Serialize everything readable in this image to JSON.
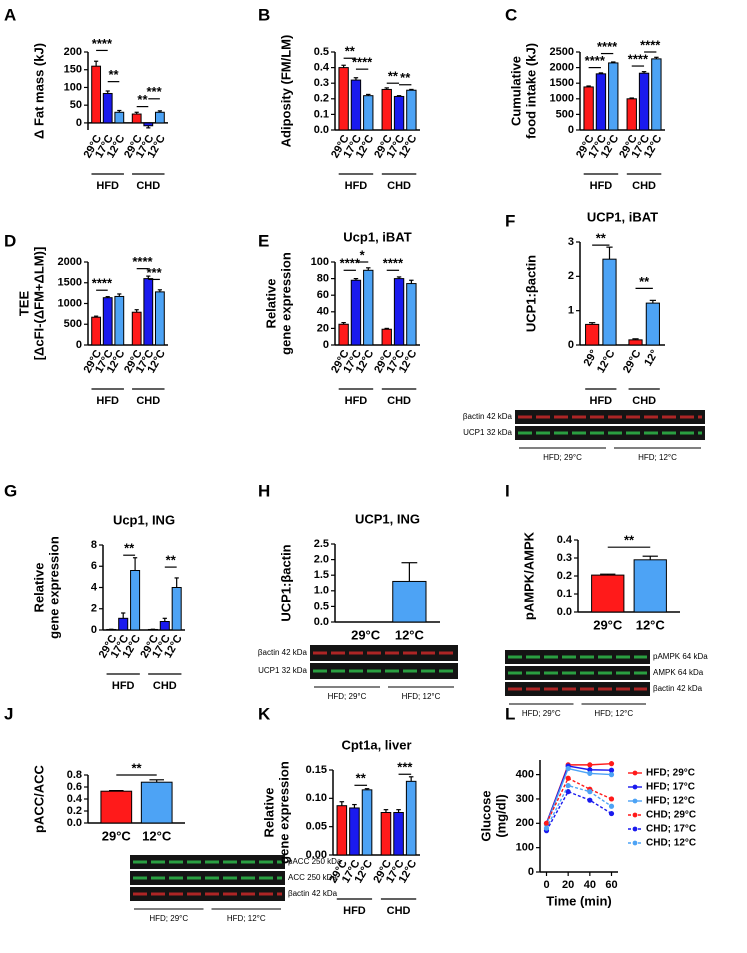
{
  "chart_data": [
    {
      "panel": "A",
      "type": "bar",
      "ylabel": [
        "Δ Fat mass (kJ)"
      ],
      "ylim": [
        -20,
        200
      ],
      "yticks": [
        0,
        50,
        100,
        150,
        200
      ],
      "colors": [
        "#ff1a1a",
        "#1a1aee",
        "#4da3f5"
      ],
      "rotate_labels": true,
      "groups": [
        {
          "name": "HFD",
          "categories": [
            "29°C",
            "17°C",
            "12°C"
          ],
          "values": [
            160,
            83,
            30
          ],
          "errors": [
            14,
            7,
            5
          ]
        },
        {
          "name": "CHD",
          "categories": [
            "29°C",
            "17°C",
            "12°C"
          ],
          "values": [
            25,
            -8,
            30
          ],
          "errors": [
            5,
            6,
            4
          ]
        }
      ],
      "significance": [
        "****",
        "**",
        "**",
        "***"
      ]
    },
    {
      "panel": "B",
      "type": "bar",
      "ylabel": [
        "Adiposity  (FM/LM)"
      ],
      "ylim": [
        0,
        0.5
      ],
      "yticks": [
        {
          "value": 0,
          "label": "0.0"
        },
        0.1,
        0.2,
        0.3,
        0.4,
        0.5
      ],
      "colors": [
        "#ff1a1a",
        "#1a1aee",
        "#4da3f5"
      ],
      "rotate_labels": true,
      "groups": [
        {
          "name": "HFD",
          "categories": [
            "29°C",
            "17°C",
            "12°C"
          ],
          "values": [
            0.4,
            0.32,
            0.22
          ],
          "errors": [
            0.015,
            0.015,
            0.008
          ]
        },
        {
          "name": "CHD",
          "categories": [
            "29°C",
            "17°C",
            "12°C"
          ],
          "values": [
            0.26,
            0.215,
            0.255
          ],
          "errors": [
            0.01,
            0.005,
            0.005
          ]
        }
      ],
      "significance": [
        "**",
        "****",
        "**",
        "**"
      ]
    },
    {
      "panel": "C",
      "type": "bar",
      "ylabel": [
        "Cumulative",
        "food intake (kJ)"
      ],
      "ylim": [
        0,
        2500
      ],
      "yticks": [
        0,
        500,
        1000,
        1500,
        2000,
        2500
      ],
      "colors": [
        "#ff1a1a",
        "#1a1aee",
        "#4da3f5"
      ],
      "rotate_labels": true,
      "groups": [
        {
          "name": "HFD",
          "categories": [
            "29°C",
            "17°C",
            "12°C"
          ],
          "values": [
            1380,
            1800,
            2150
          ],
          "errors": [
            30,
            30,
            30
          ]
        },
        {
          "name": "CHD",
          "categories": [
            "29°C",
            "17°C",
            "12°C"
          ],
          "values": [
            1000,
            1820,
            2280
          ],
          "errors": [
            25,
            50,
            50
          ]
        }
      ],
      "significance": [
        "****",
        "****",
        "****",
        "****"
      ]
    },
    {
      "panel": "D",
      "type": "bar",
      "ylabel": [
        "TEE",
        "[ΔcFI-(ΔFM+ΔLM)]"
      ],
      "ylim": [
        0,
        2000
      ],
      "yticks": [
        0,
        500,
        1000,
        1500,
        2000
      ],
      "colors": [
        "#ff1a1a",
        "#1a1aee",
        "#4da3f5"
      ],
      "rotate_labels": true,
      "groups": [
        {
          "name": "HFD",
          "categories": [
            "29°C",
            "17°C",
            "12°C"
          ],
          "values": [
            670,
            1140,
            1170
          ],
          "errors": [
            25,
            25,
            60
          ]
        },
        {
          "name": "CHD",
          "categories": [
            "29°C",
            "17°C",
            "12°C"
          ],
          "values": [
            790,
            1600,
            1280
          ],
          "errors": [
            60,
            60,
            50
          ]
        }
      ],
      "significance": [
        "****",
        "****",
        "***"
      ]
    },
    {
      "panel": "E",
      "type": "bar",
      "title": "Ucp1, iBAT",
      "ylabel": [
        "Relative",
        "gene expression"
      ],
      "ylim": [
        0,
        100
      ],
      "yticks": [
        0,
        20,
        40,
        60,
        80,
        100
      ],
      "colors": [
        "#ff1a1a",
        "#1a1aee",
        "#4da3f5"
      ],
      "rotate_labels": true,
      "groups": [
        {
          "name": "HFD",
          "categories": [
            "29°C",
            "17°C",
            "12°C"
          ],
          "values": [
            25,
            78,
            90
          ],
          "errors": [
            2,
            2,
            3
          ]
        },
        {
          "name": "CHD",
          "categories": [
            "29°C",
            "17°C",
            "12°C"
          ],
          "values": [
            19,
            80,
            74
          ],
          "errors": [
            1,
            2,
            4
          ]
        }
      ],
      "significance": [
        "****",
        "*",
        "****"
      ]
    },
    {
      "panel": "F",
      "type": "bar",
      "title": "UCP1, iBAT",
      "ylabel": [
        "UCP1:βactin"
      ],
      "ylim": [
        0,
        3
      ],
      "yticks": [
        0,
        1,
        2,
        3
      ],
      "colors": [
        "#ff1a1a",
        "#4da3f5"
      ],
      "rotate_labels": true,
      "groups": [
        {
          "name": "HFD",
          "categories": [
            "29°",
            "12°C"
          ],
          "values": [
            0.6,
            2.5
          ],
          "errors": [
            0.05,
            0.35
          ]
        },
        {
          "name": "CHD",
          "categories": [
            "29°C",
            "12°"
          ],
          "values": [
            0.15,
            1.22
          ],
          "errors": [
            0.03,
            0.08
          ]
        }
      ],
      "significance": [
        "**",
        "**"
      ],
      "blot": {
        "label_side": "left",
        "rows": [
          {
            "label": "βactin 42 kDa",
            "color": "#c82828"
          },
          {
            "label": "UCP1 32 kDa",
            "color": "#2fb84a"
          }
        ],
        "groups": [
          "HFD; 29°C",
          "HFD; 12°C"
        ]
      }
    },
    {
      "panel": "G",
      "type": "bar",
      "title": "Ucp1, ING",
      "ylabel": [
        "Relative",
        "gene expression"
      ],
      "ylim": [
        0,
        8
      ],
      "yticks": [
        0,
        2,
        4,
        6,
        8
      ],
      "colors": [
        "#ff1a1a",
        "#1a1aee",
        "#4da3f5"
      ],
      "rotate_labels": true,
      "groups": [
        {
          "name": "HFD",
          "categories": [
            "29°C",
            "17°C",
            "12°C"
          ],
          "values": [
            0.05,
            1.1,
            5.6
          ],
          "errors": [
            0.02,
            0.5,
            1.2
          ]
        },
        {
          "name": "CHD",
          "categories": [
            "29°C",
            "17°C",
            "12°C"
          ],
          "values": [
            0.05,
            0.8,
            4.0
          ],
          "errors": [
            0.02,
            0.3,
            0.9
          ]
        }
      ],
      "significance": [
        "**",
        "**"
      ]
    },
    {
      "panel": "H",
      "type": "bar",
      "title": "UCP1, ING",
      "ylabel": [
        "UCP1:βactin"
      ],
      "ylim": [
        0,
        2.5
      ],
      "yticks": [
        {
          "value": 0,
          "label": "0.0"
        },
        0.5,
        {
          "value": 1,
          "label": "1.0"
        },
        1.5,
        {
          "value": 2,
          "label": "2.0"
        },
        2.5
      ],
      "colors": [
        "#ff1a1a",
        "#4da3f5"
      ],
      "rotate_labels": false,
      "groups": [
        {
          "categories": [
            "29°C",
            "12°C"
          ],
          "values": [
            0,
            1.3
          ],
          "errors": [
            null,
            0.6
          ]
        }
      ],
      "significance": [],
      "blot": {
        "label_side": "left",
        "rows": [
          {
            "label": "βactin 42 kDa",
            "color": "#c82828"
          },
          {
            "label": "UCP1 32 kDa",
            "color": "#2fb84a"
          }
        ],
        "groups": [
          "HFD; 29°C",
          "HFD; 12°C"
        ]
      }
    },
    {
      "panel": "I",
      "type": "bar",
      "ylabel": [
        "pAMPK/AMPK"
      ],
      "ylim": [
        0,
        0.4
      ],
      "yticks": [
        {
          "value": 0,
          "label": "0.0"
        },
        0.1,
        0.2,
        0.3,
        0.4
      ],
      "colors": [
        "#ff1a1a",
        "#4da3f5"
      ],
      "rotate_labels": false,
      "groups": [
        {
          "categories": [
            "29°C",
            "12°C"
          ],
          "values": [
            0.205,
            0.29
          ],
          "errors": [
            0.005,
            0.02
          ]
        }
      ],
      "significance": [
        "**"
      ],
      "blot": {
        "label_side": "right",
        "rows": [
          {
            "label": "pAMPK 64 kDa",
            "color": "#2fb84a"
          },
          {
            "label": "AMPK 64 kDa",
            "color": "#2fb84a"
          },
          {
            "label": "βactin 42 kDa",
            "color": "#c82828"
          }
        ],
        "groups": [
          "HFD; 29°C",
          "HFD; 12°C"
        ]
      }
    },
    {
      "panel": "J",
      "type": "bar",
      "ylabel": [
        "pACC/ACC"
      ],
      "ylim": [
        0,
        0.8
      ],
      "yticks": [
        {
          "value": 0,
          "label": "0.0"
        },
        0.2,
        0.4,
        0.6,
        0.8
      ],
      "colors": [
        "#ff1a1a",
        "#4da3f5"
      ],
      "rotate_labels": false,
      "groups": [
        {
          "categories": [
            "29°C",
            "12°C"
          ],
          "values": [
            0.53,
            0.68
          ],
          "errors": [
            0.01,
            0.04
          ]
        }
      ],
      "significance": [
        "**"
      ],
      "blot": {
        "label_side": "right",
        "rows": [
          {
            "label": "pACC 250 kDa",
            "color": "#2fb84a"
          },
          {
            "label": "ACC 250 kDa",
            "color": "#2fb84a"
          },
          {
            "label": "βactin 42 kDa",
            "color": "#c82828"
          }
        ],
        "groups": [
          "HFD; 29°C",
          "HFD; 12°C"
        ]
      }
    },
    {
      "panel": "K",
      "type": "bar",
      "title": "Cpt1a, liver",
      "ylabel": [
        "Relative",
        "gene expression"
      ],
      "ylim": [
        0,
        0.15
      ],
      "yticks": [
        {
          "value": 0,
          "label": "0.00"
        },
        0.05,
        {
          "value": 0.1,
          "label": "0.10"
        },
        0.15
      ],
      "colors": [
        "#ff1a1a",
        "#1a1aee",
        "#4da3f5"
      ],
      "rotate_labels": true,
      "groups": [
        {
          "name": "HFD",
          "categories": [
            "29°C",
            "17°C",
            "12°C"
          ],
          "values": [
            0.087,
            0.083,
            0.115
          ],
          "errors": [
            0.007,
            0.006,
            0.002
          ]
        },
        {
          "name": "CHD",
          "categories": [
            "29°C",
            "17°C",
            "12°C"
          ],
          "values": [
            0.075,
            0.075,
            0.13
          ],
          "errors": [
            0.005,
            0.005,
            0.008
          ]
        }
      ],
      "significance": [
        "**",
        "***"
      ]
    },
    {
      "panel": "L",
      "type": "line",
      "ylabel": [
        "Glucose",
        "(mg/dl)"
      ],
      "xlabel": "Time (min)",
      "x": [
        0,
        20,
        40,
        60
      ],
      "xlim": [
        -6,
        66
      ],
      "xticks": [
        0,
        20,
        40,
        60
      ],
      "ylim": [
        0,
        460
      ],
      "yticks": [
        0,
        100,
        200,
        300,
        400
      ],
      "series": [
        {
          "name": "HFD; 29°C",
          "color": "#ff1a1a",
          "dashed": false,
          "values": [
            200,
            440,
            440,
            445
          ]
        },
        {
          "name": "HFD; 17°C",
          "color": "#1a1aee",
          "dashed": false,
          "values": [
            200,
            435,
            420,
            418
          ]
        },
        {
          "name": "HFD; 12°C",
          "color": "#4da3f5",
          "dashed": false,
          "values": [
            195,
            425,
            405,
            400
          ]
        },
        {
          "name": "CHD; 29°C",
          "color": "#ff1a1a",
          "dashed": true,
          "values": [
            200,
            385,
            340,
            300
          ]
        },
        {
          "name": "CHD; 17°C",
          "color": "#1a1aee",
          "dashed": true,
          "values": [
            170,
            330,
            295,
            240
          ]
        },
        {
          "name": "CHD; 12°C",
          "color": "#4da3f5",
          "dashed": true,
          "values": [
            180,
            355,
            330,
            270
          ]
        }
      ]
    }
  ]
}
